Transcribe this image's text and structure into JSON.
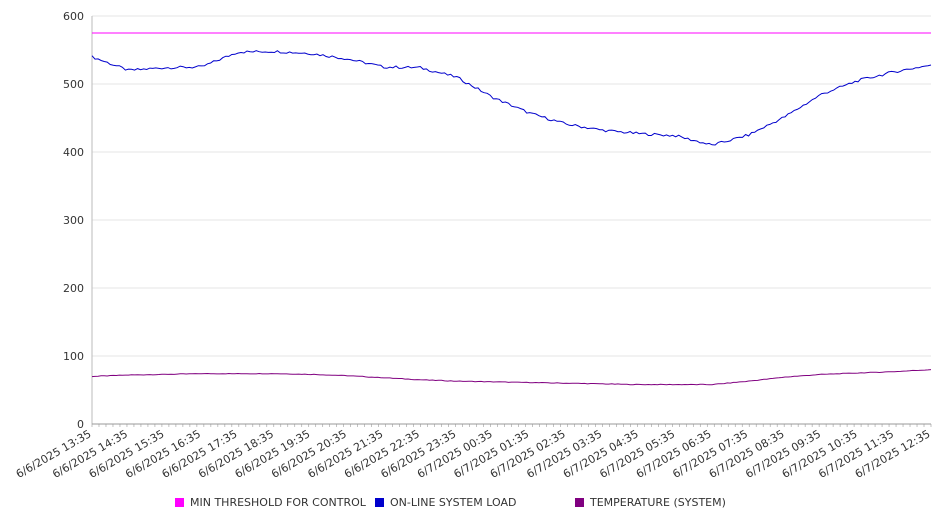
{
  "chart_data": {
    "type": "line",
    "title": "",
    "xlabel": "",
    "ylabel": "",
    "ylim": [
      0,
      600
    ],
    "yticks": [
      0,
      100,
      200,
      300,
      400,
      500,
      600
    ],
    "grid": true,
    "legend_position": "bottom",
    "categories": [
      "6/6/2025 13:35",
      "6/6/2025 14:35",
      "6/6/2025 15:35",
      "6/6/2025 16:35",
      "6/6/2025 17:35",
      "6/6/2025 18:35",
      "6/6/2025 19:35",
      "6/6/2025 20:35",
      "6/6/2025 21:35",
      "6/6/2025 22:35",
      "6/6/2025 23:35",
      "6/7/2025 00:35",
      "6/7/2025 01:35",
      "6/7/2025 02:35",
      "6/7/2025 03:35",
      "6/7/2025 04:35",
      "6/7/2025 05:35",
      "6/7/2025 06:35",
      "6/7/2025 07:35",
      "6/7/2025 08:35",
      "6/7/2025 09:35",
      "6/7/2025 10:35",
      "6/7/2025 11:35",
      "6/7/2025 12:35"
    ],
    "series": [
      {
        "name": "MIN THRESHOLD FOR CONTROL",
        "color": "#ff00ff",
        "values": [
          575,
          575,
          575,
          575,
          575,
          575,
          575,
          575,
          575,
          575,
          575,
          575,
          575,
          575,
          575,
          575,
          575,
          575,
          575,
          575,
          575,
          575,
          575,
          575
        ]
      },
      {
        "name": "ON-LINE SYSTEM LOAD",
        "color": "#0000cc",
        "values": [
          540,
          520,
          524,
          525,
          547,
          548,
          545,
          537,
          525,
          524,
          510,
          480,
          457,
          441,
          432,
          427,
          424,
          410,
          425,
          452,
          485,
          505,
          518,
          528
        ]
      },
      {
        "name": "TEMPERATURE (SYSTEM)",
        "color": "#800080",
        "values": [
          70,
          72,
          73,
          74,
          74,
          74,
          73,
          71,
          68,
          65,
          63,
          62,
          61,
          60,
          59,
          58,
          58,
          58,
          63,
          69,
          73,
          75,
          77,
          80
        ]
      }
    ]
  }
}
